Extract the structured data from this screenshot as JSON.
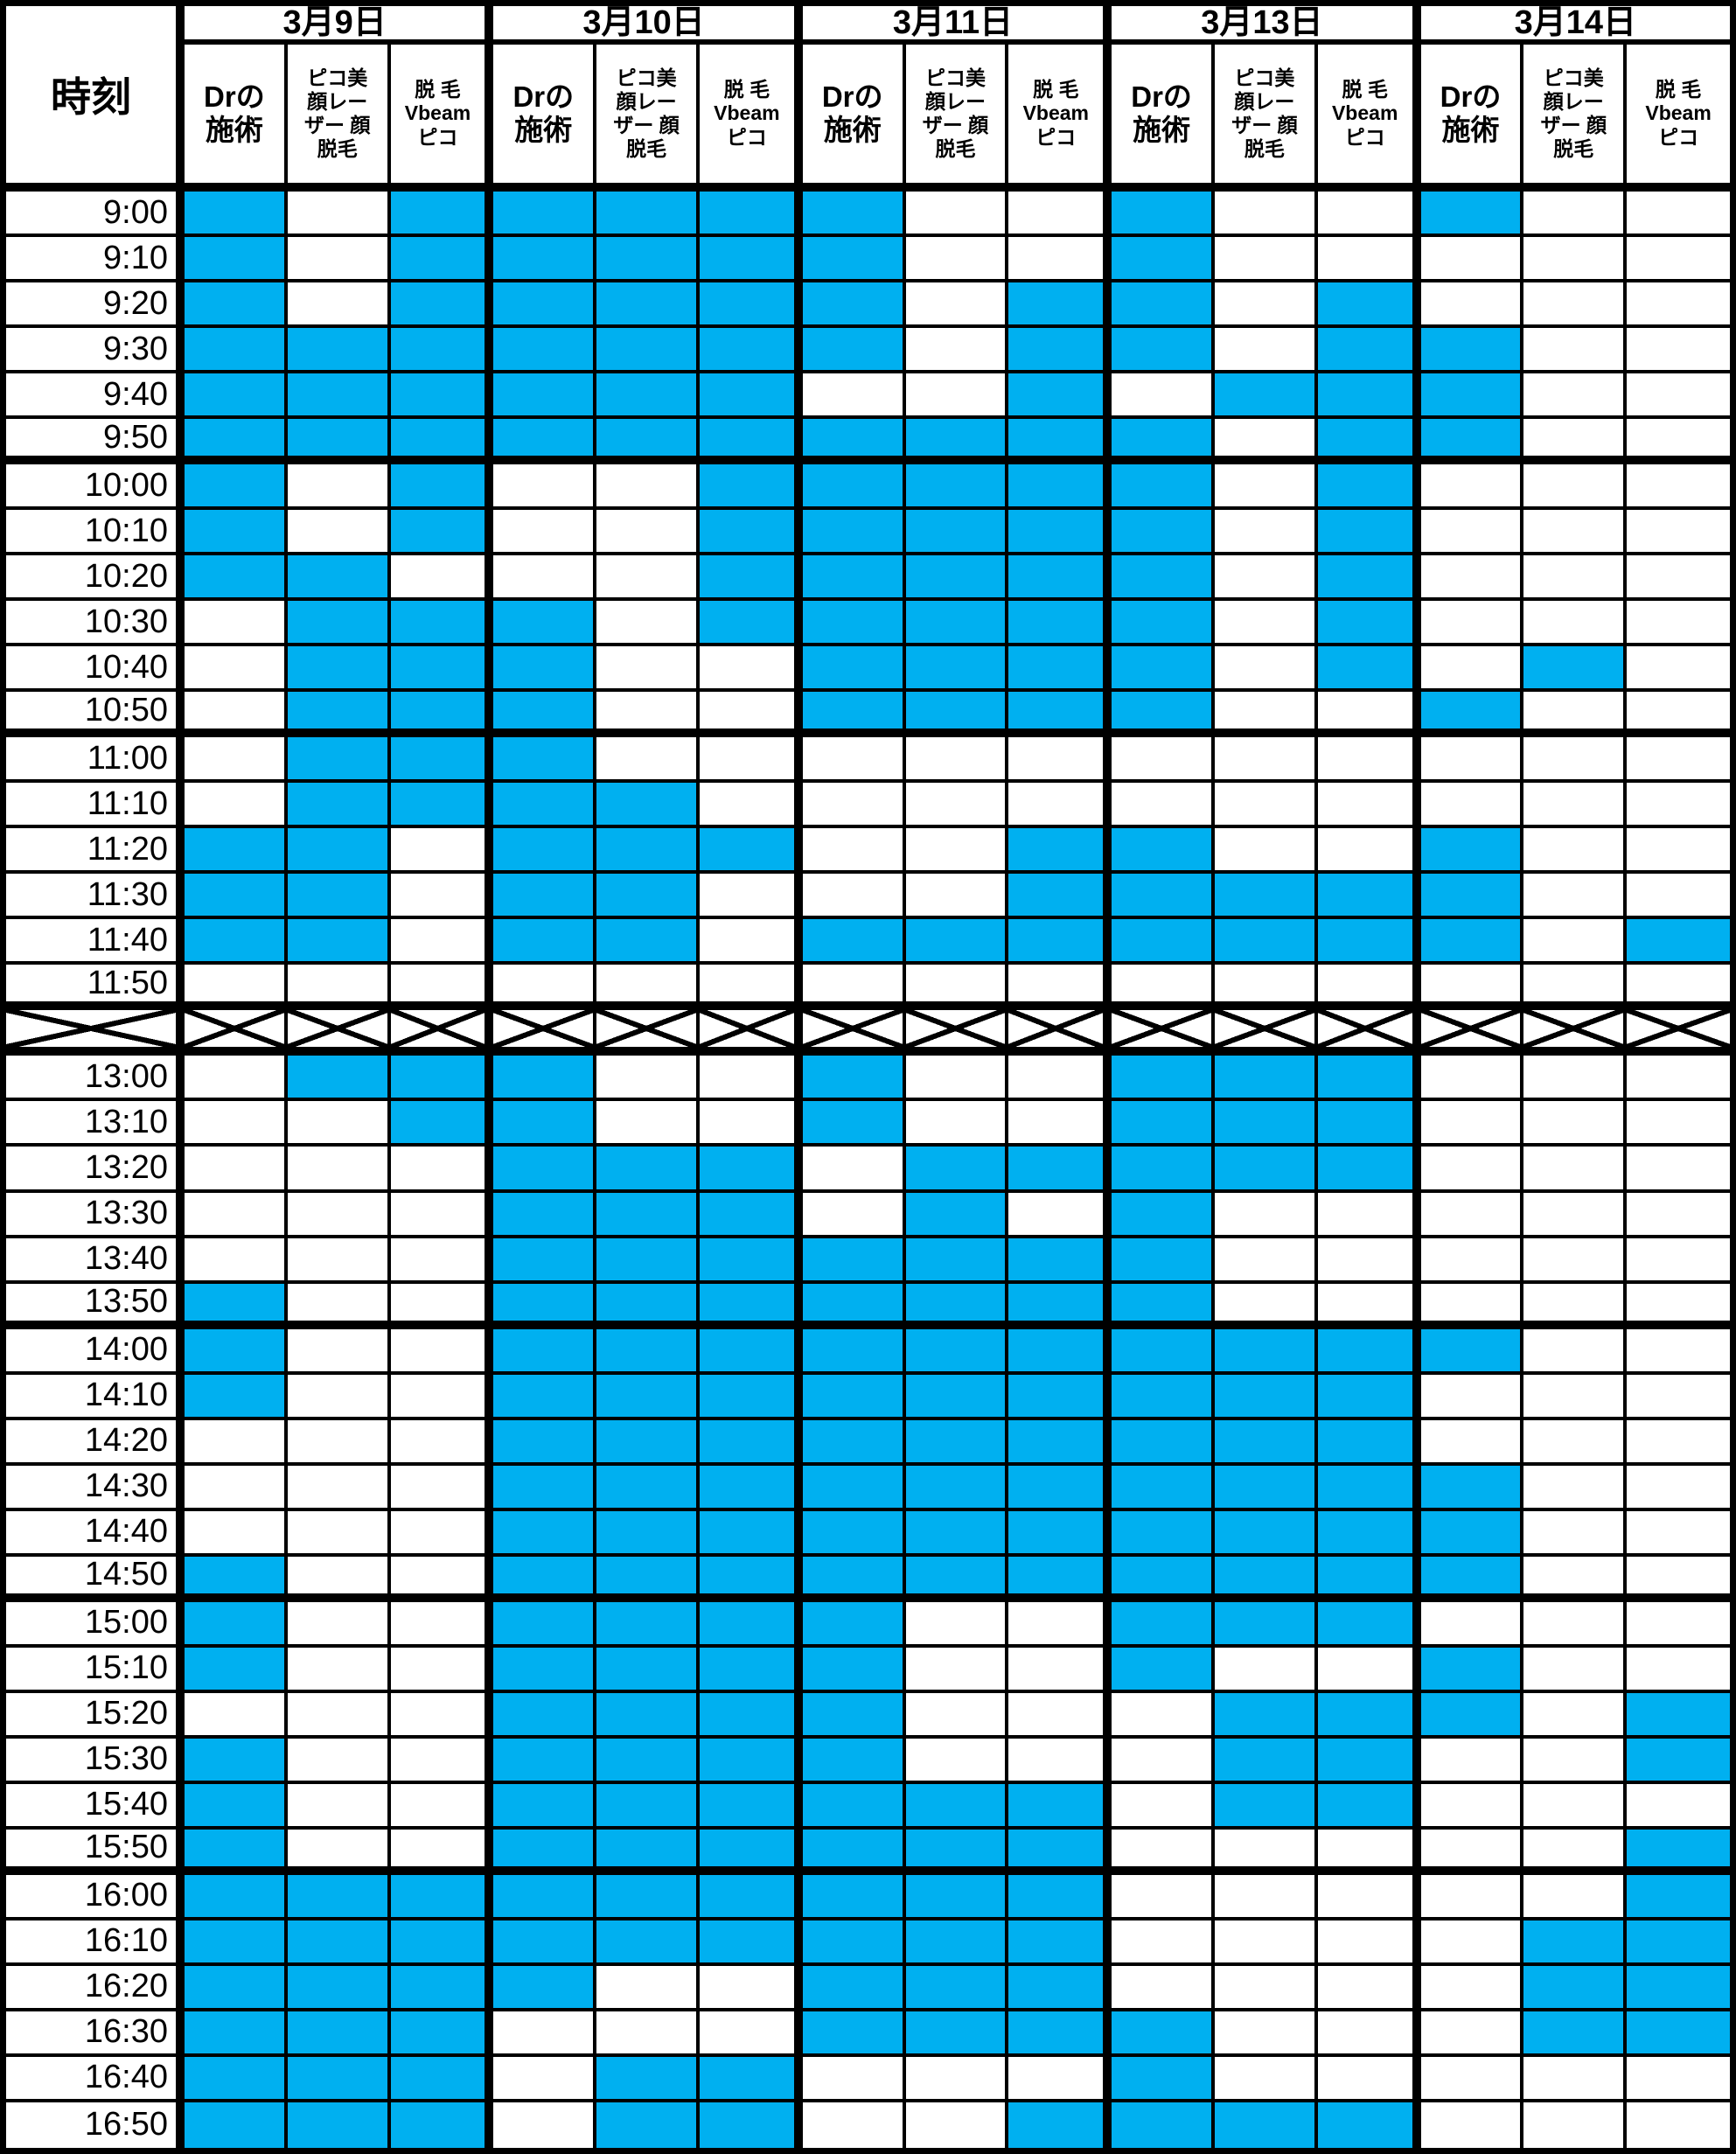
{
  "header": {
    "time_label": "時刻",
    "dates": [
      "3月9日",
      "3月10日",
      "3月11日",
      "3月13日",
      "3月14日"
    ],
    "service_columns": [
      {
        "label": "Drの施術",
        "lines": [
          "Drの",
          "施術"
        ]
      },
      {
        "label": "ピコ美顔レーザー 顔脱毛",
        "lines": [
          "ピコ美",
          "顔レー",
          "ザー 顔",
          "脱毛"
        ]
      },
      {
        "label": "脱毛 Vbeam ピコ",
        "lines": [
          "脱 毛",
          "Vbeam",
          "ピコ"
        ]
      }
    ]
  },
  "colors": {
    "available": "#00B0F0",
    "grid": "#000000",
    "background": "#FFFFFF"
  },
  "chart_data": {
    "type": "heatmap",
    "dates": [
      "3月9日",
      "3月10日",
      "3月11日",
      "3月13日",
      "3月14日"
    ],
    "services_per_date": [
      "Drの施術",
      "ピコ美顔レーザー 顔脱毛",
      "脱毛 Vbeam ピコ"
    ],
    "value_1_color": "#00B0F0",
    "value_0_color": "#FFFFFF",
    "rows": [
      {
        "time": "9:00",
        "cells": [
          1,
          0,
          1,
          1,
          1,
          1,
          1,
          0,
          0,
          1,
          0,
          0,
          1,
          0,
          0
        ]
      },
      {
        "time": "9:10",
        "cells": [
          1,
          0,
          1,
          1,
          1,
          1,
          1,
          0,
          0,
          1,
          0,
          0,
          0,
          0,
          0
        ]
      },
      {
        "time": "9:20",
        "cells": [
          1,
          0,
          1,
          1,
          1,
          1,
          1,
          0,
          1,
          1,
          0,
          1,
          0,
          0,
          0
        ]
      },
      {
        "time": "9:30",
        "cells": [
          1,
          1,
          1,
          1,
          1,
          1,
          1,
          0,
          1,
          1,
          0,
          1,
          1,
          0,
          0
        ]
      },
      {
        "time": "9:40",
        "cells": [
          1,
          1,
          1,
          1,
          1,
          1,
          0,
          0,
          1,
          0,
          1,
          1,
          1,
          0,
          0
        ]
      },
      {
        "time": "9:50",
        "cells": [
          1,
          1,
          1,
          1,
          1,
          1,
          1,
          1,
          1,
          1,
          0,
          1,
          1,
          0,
          0
        ]
      },
      {
        "time": "10:00",
        "cells": [
          1,
          0,
          1,
          0,
          0,
          1,
          1,
          1,
          1,
          1,
          0,
          1,
          0,
          0,
          0
        ]
      },
      {
        "time": "10:10",
        "cells": [
          1,
          0,
          1,
          0,
          0,
          1,
          1,
          1,
          1,
          1,
          0,
          1,
          0,
          0,
          0
        ]
      },
      {
        "time": "10:20",
        "cells": [
          1,
          1,
          0,
          0,
          0,
          1,
          1,
          1,
          1,
          1,
          0,
          1,
          0,
          0,
          0
        ]
      },
      {
        "time": "10:30",
        "cells": [
          0,
          1,
          1,
          1,
          0,
          1,
          1,
          1,
          1,
          1,
          0,
          1,
          0,
          0,
          0
        ]
      },
      {
        "time": "10:40",
        "cells": [
          0,
          1,
          1,
          1,
          0,
          0,
          1,
          1,
          1,
          1,
          0,
          1,
          0,
          1,
          0
        ]
      },
      {
        "time": "10:50",
        "cells": [
          0,
          1,
          1,
          1,
          0,
          0,
          1,
          1,
          1,
          1,
          0,
          0,
          1,
          0,
          0
        ]
      },
      {
        "time": "11:00",
        "cells": [
          0,
          1,
          1,
          1,
          0,
          0,
          0,
          0,
          0,
          0,
          0,
          0,
          0,
          0,
          0
        ]
      },
      {
        "time": "11:10",
        "cells": [
          0,
          1,
          1,
          1,
          1,
          0,
          0,
          0,
          0,
          0,
          0,
          0,
          0,
          0,
          0
        ]
      },
      {
        "time": "11:20",
        "cells": [
          1,
          1,
          0,
          1,
          1,
          1,
          0,
          0,
          1,
          1,
          0,
          0,
          1,
          0,
          0
        ]
      },
      {
        "time": "11:30",
        "cells": [
          1,
          1,
          0,
          1,
          1,
          0,
          0,
          0,
          1,
          1,
          1,
          1,
          1,
          0,
          0
        ]
      },
      {
        "time": "11:40",
        "cells": [
          1,
          1,
          0,
          1,
          1,
          0,
          1,
          1,
          1,
          1,
          1,
          1,
          1,
          0,
          1
        ]
      },
      {
        "time": "11:50",
        "cells": [
          0,
          0,
          0,
          0,
          0,
          0,
          0,
          0,
          0,
          0,
          0,
          0,
          0,
          0,
          0
        ]
      },
      {
        "time": "",
        "closed": true,
        "cells": []
      },
      {
        "time": "13:00",
        "cells": [
          0,
          1,
          1,
          1,
          0,
          0,
          1,
          0,
          0,
          1,
          1,
          1,
          0,
          0,
          0
        ]
      },
      {
        "time": "13:10",
        "cells": [
          0,
          0,
          1,
          1,
          0,
          0,
          1,
          0,
          0,
          1,
          1,
          1,
          0,
          0,
          0
        ]
      },
      {
        "time": "13:20",
        "cells": [
          0,
          0,
          0,
          1,
          1,
          1,
          0,
          1,
          1,
          1,
          1,
          1,
          0,
          0,
          0
        ]
      },
      {
        "time": "13:30",
        "cells": [
          0,
          0,
          0,
          1,
          1,
          1,
          0,
          1,
          0,
          1,
          0,
          0,
          0,
          0,
          0
        ]
      },
      {
        "time": "13:40",
        "cells": [
          0,
          0,
          0,
          1,
          1,
          1,
          1,
          1,
          1,
          1,
          0,
          0,
          0,
          0,
          0
        ]
      },
      {
        "time": "13:50",
        "cells": [
          1,
          0,
          0,
          1,
          1,
          1,
          1,
          1,
          1,
          1,
          0,
          0,
          0,
          0,
          0
        ]
      },
      {
        "time": "14:00",
        "cells": [
          1,
          0,
          0,
          1,
          1,
          1,
          1,
          1,
          1,
          1,
          1,
          1,
          1,
          0,
          0
        ]
      },
      {
        "time": "14:10",
        "cells": [
          1,
          0,
          0,
          1,
          1,
          1,
          1,
          1,
          1,
          1,
          1,
          1,
          0,
          0,
          0
        ]
      },
      {
        "time": "14:20",
        "cells": [
          0,
          0,
          0,
          1,
          1,
          1,
          1,
          1,
          1,
          1,
          1,
          1,
          0,
          0,
          0
        ]
      },
      {
        "time": "14:30",
        "cells": [
          0,
          0,
          0,
          1,
          1,
          1,
          1,
          1,
          1,
          1,
          1,
          1,
          1,
          0,
          0
        ]
      },
      {
        "time": "14:40",
        "cells": [
          0,
          0,
          0,
          1,
          1,
          1,
          1,
          1,
          1,
          1,
          1,
          1,
          1,
          0,
          0
        ]
      },
      {
        "time": "14:50",
        "cells": [
          1,
          0,
          0,
          1,
          1,
          1,
          1,
          1,
          1,
          1,
          1,
          1,
          1,
          0,
          0
        ]
      },
      {
        "time": "15:00",
        "cells": [
          1,
          0,
          0,
          1,
          1,
          1,
          1,
          0,
          0,
          1,
          1,
          1,
          0,
          0,
          0
        ]
      },
      {
        "time": "15:10",
        "cells": [
          1,
          0,
          0,
          1,
          1,
          1,
          1,
          0,
          0,
          1,
          0,
          0,
          1,
          0,
          0
        ]
      },
      {
        "time": "15:20",
        "cells": [
          0,
          0,
          0,
          1,
          1,
          1,
          1,
          0,
          0,
          0,
          1,
          1,
          1,
          0,
          1
        ]
      },
      {
        "time": "15:30",
        "cells": [
          1,
          0,
          0,
          1,
          1,
          1,
          1,
          0,
          0,
          0,
          1,
          1,
          0,
          0,
          1
        ]
      },
      {
        "time": "15:40",
        "cells": [
          1,
          0,
          0,
          1,
          1,
          1,
          1,
          1,
          1,
          0,
          1,
          1,
          0,
          0,
          0
        ]
      },
      {
        "time": "15:50",
        "cells": [
          1,
          0,
          0,
          1,
          1,
          1,
          1,
          1,
          1,
          0,
          0,
          0,
          0,
          0,
          1
        ]
      },
      {
        "time": "16:00",
        "cells": [
          1,
          1,
          1,
          1,
          1,
          1,
          1,
          1,
          1,
          0,
          0,
          0,
          0,
          0,
          1
        ]
      },
      {
        "time": "16:10",
        "cells": [
          1,
          1,
          1,
          1,
          1,
          1,
          1,
          1,
          1,
          0,
          0,
          0,
          0,
          1,
          1
        ]
      },
      {
        "time": "16:20",
        "cells": [
          1,
          1,
          1,
          1,
          0,
          0,
          1,
          1,
          1,
          0,
          0,
          0,
          0,
          1,
          1
        ]
      },
      {
        "time": "16:30",
        "cells": [
          1,
          1,
          1,
          0,
          0,
          0,
          1,
          1,
          1,
          1,
          0,
          0,
          0,
          1,
          1
        ]
      },
      {
        "time": "16:40",
        "cells": [
          1,
          1,
          1,
          0,
          1,
          1,
          0,
          0,
          0,
          1,
          0,
          0,
          0,
          0,
          0
        ]
      },
      {
        "time": "16:50",
        "cells": [
          1,
          1,
          1,
          0,
          1,
          1,
          0,
          0,
          1,
          1,
          1,
          1,
          0,
          0,
          0
        ]
      }
    ]
  }
}
